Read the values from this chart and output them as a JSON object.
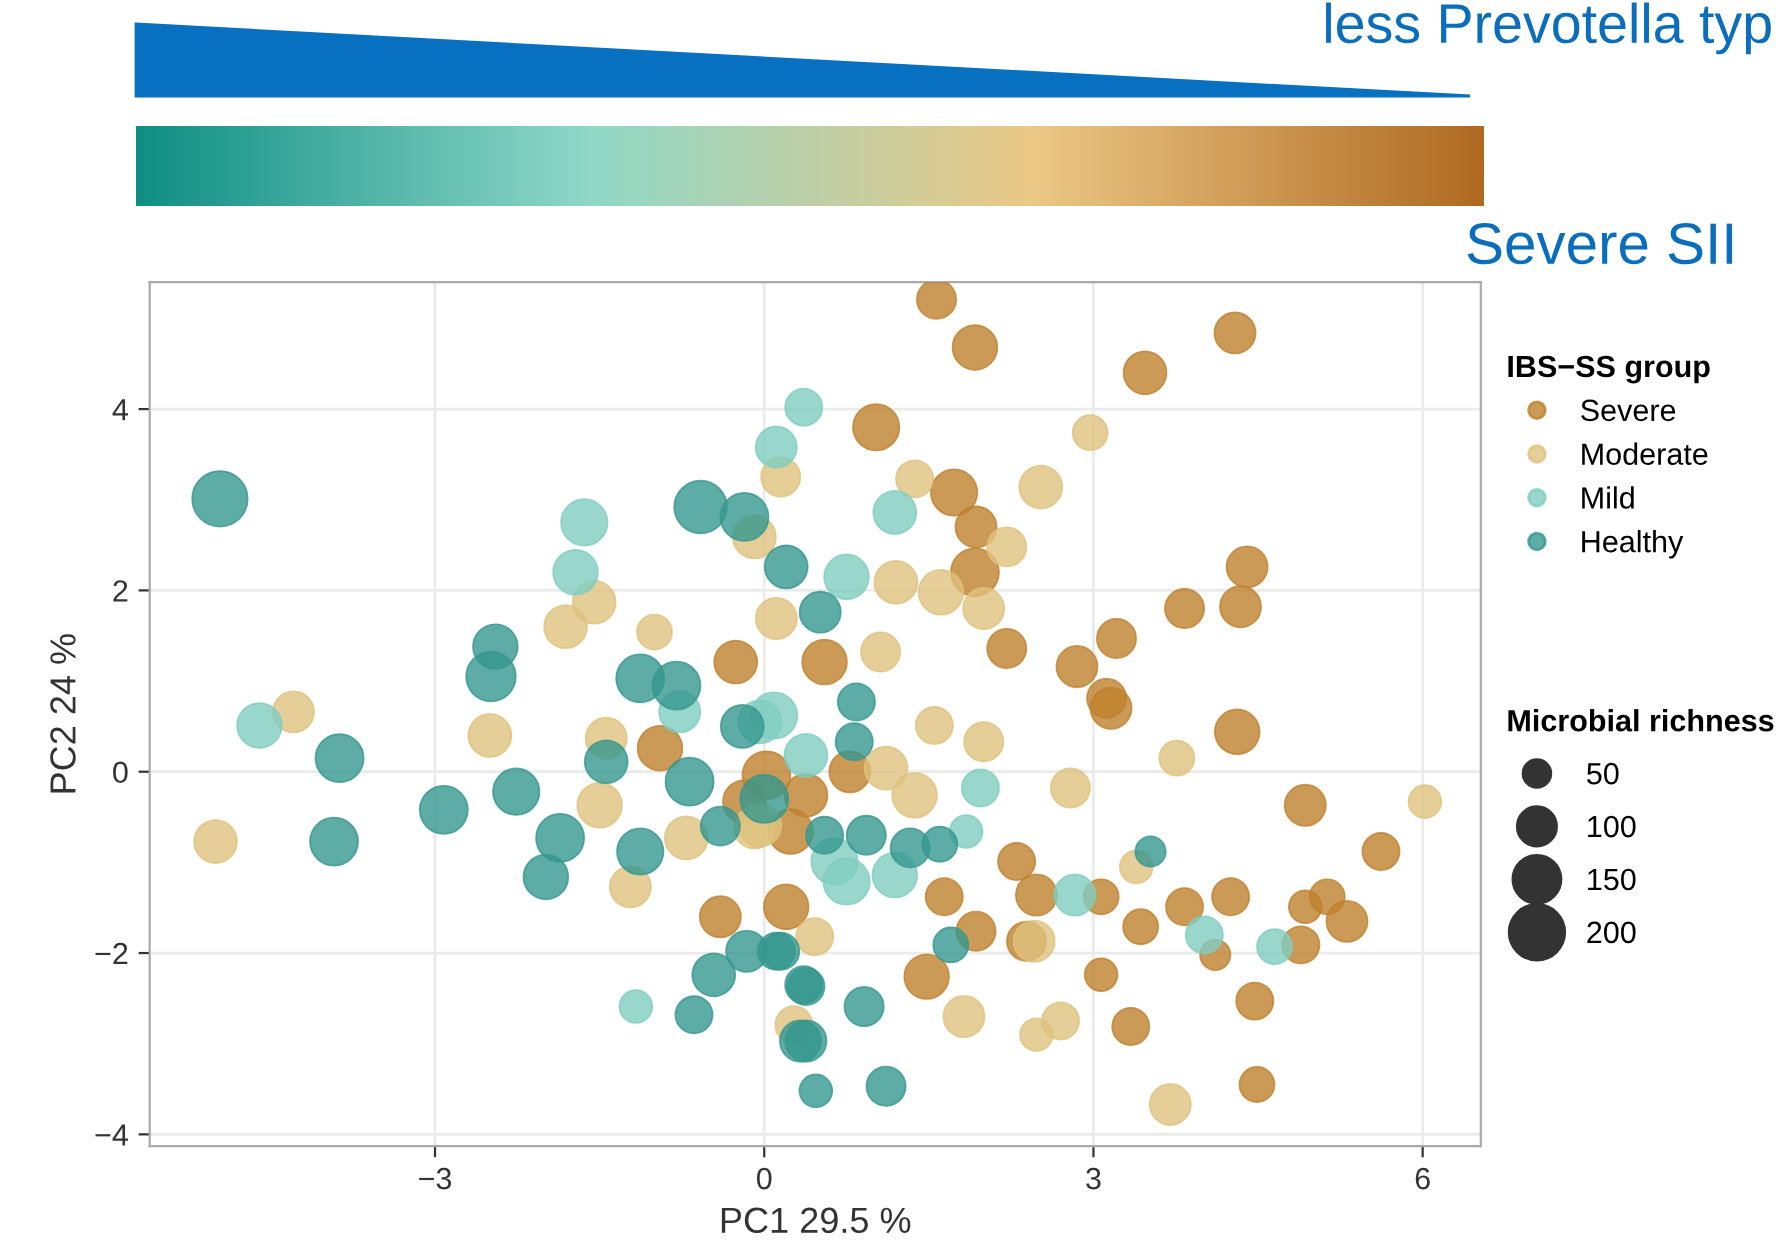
{
  "chart_data": {
    "type": "bubble",
    "xlabel": "PC1 29.5 %",
    "ylabel": "PC2 24 %",
    "legend_title": "IBS−SS group",
    "annotations": [
      "less Prevotella typ",
      "Severe SII",
      "Microbial richness"
    ],
    "xlim": [
      -5.6,
      6.53
    ],
    "ylim": [
      -4.13,
      5.4
    ],
    "xticks": [
      {
        "value": -3,
        "label": "−3"
      },
      0,
      3,
      6
    ],
    "yticks": [
      {
        "value": -4,
        "label": "−4"
      },
      {
        "value": -2,
        "label": "−2"
      },
      0,
      2,
      4
    ],
    "grid": true,
    "legend": "right",
    "size_legend": [
      50,
      100,
      150,
      200
    ],
    "series": [
      {
        "name": "Severe",
        "color": "#bf812d",
        "x": [
          1.57,
          1.92,
          3.47,
          4.29,
          1.02,
          1.73,
          1.93,
          1.92,
          4.4,
          4.34,
          3.83,
          3.21,
          2.85,
          2.21,
          0.55,
          3.12,
          -0.26,
          -0.95,
          -0.4,
          0.2,
          0.38,
          3.16,
          4.31,
          4.93,
          5.62,
          1.64,
          1.93,
          1.48,
          2.3,
          2.48,
          2.39,
          3.07,
          3.43,
          3.83,
          4.25,
          4.93,
          5.13,
          5.31,
          4.89,
          4.47,
          3.34,
          3.07,
          4.49,
          4.11,
          0.02,
          -0.18,
          0.78,
          0.24
        ],
        "values": [
          5.21,
          4.68,
          4.4,
          4.84,
          3.8,
          3.08,
          2.7,
          2.2,
          2.26,
          1.82,
          1.8,
          1.47,
          1.16,
          1.36,
          1.21,
          0.81,
          1.21,
          0.26,
          -1.6,
          -1.49,
          -0.26,
          0.7,
          0.44,
          -0.37,
          -0.88,
          -1.38,
          -1.76,
          -2.26,
          -0.99,
          -1.36,
          -1.87,
          -1.38,
          -1.71,
          -1.49,
          -1.38,
          -1.49,
          -1.38,
          -1.65,
          -1.91,
          -2.53,
          -2.81,
          -2.24,
          -3.45,
          -2.02,
          -0.04,
          -0.33,
          0.0,
          -0.66
        ],
        "sizes": [
          100,
          130,
          120,
          110,
          140,
          140,
          110,
          150,
          110,
          110,
          100,
          100,
          110,
          100,
          130,
          100,
          120,
          130,
          110,
          130,
          120,
          110,
          130,
          110,
          90,
          90,
          100,
          130,
          90,
          110,
          100,
          80,
          80,
          90,
          90,
          70,
          80,
          110,
          90,
          90,
          90,
          70,
          80,
          60,
          150,
          120,
          110,
          130
        ]
      },
      {
        "name": "Moderate",
        "color": "#dfc27d",
        "x": [
          -4.29,
          -5.0,
          -2.5,
          -1.5,
          -1.22,
          -0.71,
          -0.09,
          -1.44,
          0.15,
          -1.81,
          -1.55,
          -1.0,
          0.11,
          -0.09,
          2.97,
          2.52,
          1.37,
          1.06,
          2.21,
          1.61,
          2.0,
          1.2,
          1.55,
          2.0,
          3.76,
          2.79,
          6.02,
          1.37,
          1.11,
          0.46,
          1.82,
          2.7,
          2.48,
          3.7,
          3.39,
          2.46,
          0.27,
          -0.04
        ],
        "values": [
          0.66,
          -0.77,
          0.4,
          -0.37,
          -1.27,
          -0.73,
          -0.62,
          0.37,
          3.25,
          1.6,
          1.87,
          1.54,
          1.69,
          2.59,
          3.74,
          3.14,
          3.23,
          1.32,
          2.48,
          1.98,
          1.8,
          2.09,
          0.51,
          0.33,
          0.15,
          -0.18,
          -0.33,
          -0.26,
          0.04,
          -1.82,
          -2.7,
          -2.75,
          -2.9,
          -3.67,
          -1.05,
          -1.87,
          -2.79,
          -0.59
        ],
        "sizes": [
          110,
          120,
          120,
          130,
          110,
          120,
          110,
          110,
          100,
          120,
          120,
          80,
          110,
          120,
          80,
          120,
          90,
          100,
          100,
          130,
          110,
          120,
          90,
          100,
          80,
          100,
          70,
          130,
          120,
          90,
          110,
          90,
          70,
          110,
          70,
          110,
          90,
          120
        ]
      },
      {
        "name": "Mild",
        "color": "#80cdc1",
        "x": [
          0.36,
          0.11,
          -1.64,
          -1.72,
          1.19,
          0.75,
          -4.6,
          -1.17,
          0.64,
          0.75,
          1.19,
          1.97,
          2.83,
          4.01,
          4.65,
          1.84,
          0.09,
          0.38,
          -0.04,
          -0.77
        ],
        "values": [
          4.02,
          3.58,
          2.75,
          2.2,
          2.86,
          2.15,
          0.51,
          -2.59,
          -0.99,
          -1.21,
          -1.14,
          -0.18,
          -1.36,
          -1.8,
          -1.93,
          -0.66,
          0.62,
          0.18,
          0.55,
          0.66
        ],
        "sizes": [
          90,
          110,
          140,
          130,
          120,
          130,
          130,
          70,
          140,
          140,
          130,
          90,
          110,
          90,
          80,
          70,
          140,
          120,
          120,
          110
        ]
      },
      {
        "name": "Healthy",
        "color": "#35978f",
        "x": [
          -4.96,
          -0.58,
          -0.18,
          -2.45,
          -2.49,
          -1.13,
          -0.8,
          0.2,
          0.51,
          -3.87,
          -3.92,
          -2.92,
          -2.26,
          -1.86,
          -1.99,
          -1.13,
          -0.68,
          -1.44,
          -0.46,
          -0.64,
          -0.16,
          0.15,
          0.38,
          0.38,
          0.47,
          0.84,
          0.82,
          0.93,
          1.33,
          0.11,
          0.36,
          0.33,
          0.91,
          1.11,
          1.7,
          3.52,
          -0.2,
          0.0,
          -0.4,
          0.55,
          1.6
        ],
        "values": [
          3.01,
          2.92,
          2.81,
          1.38,
          1.05,
          1.03,
          0.95,
          2.26,
          1.76,
          0.15,
          -0.77,
          -0.42,
          -0.22,
          -0.73,
          -1.16,
          -0.88,
          -0.11,
          0.11,
          -2.24,
          -2.68,
          -1.98,
          -1.98,
          -2.37,
          -2.97,
          -3.52,
          0.77,
          0.33,
          -0.7,
          -0.84,
          -1.98,
          -2.35,
          -2.97,
          -2.59,
          -3.47,
          -1.91,
          -0.88,
          0.5,
          -0.3,
          -0.6,
          -0.7,
          -0.8
        ],
        "sizes": [
          200,
          180,
          150,
          130,
          160,
          150,
          150,
          120,
          110,
          150,
          150,
          150,
          140,
          150,
          130,
          140,
          150,
          120,
          120,
          90,
          110,
          90,
          90,
          110,
          70,
          90,
          90,
          100,
          100,
          90,
          90,
          110,
          100,
          100,
          80,
          60,
          120,
          150,
          100,
          90,
          80
        ]
      }
    ]
  }
}
